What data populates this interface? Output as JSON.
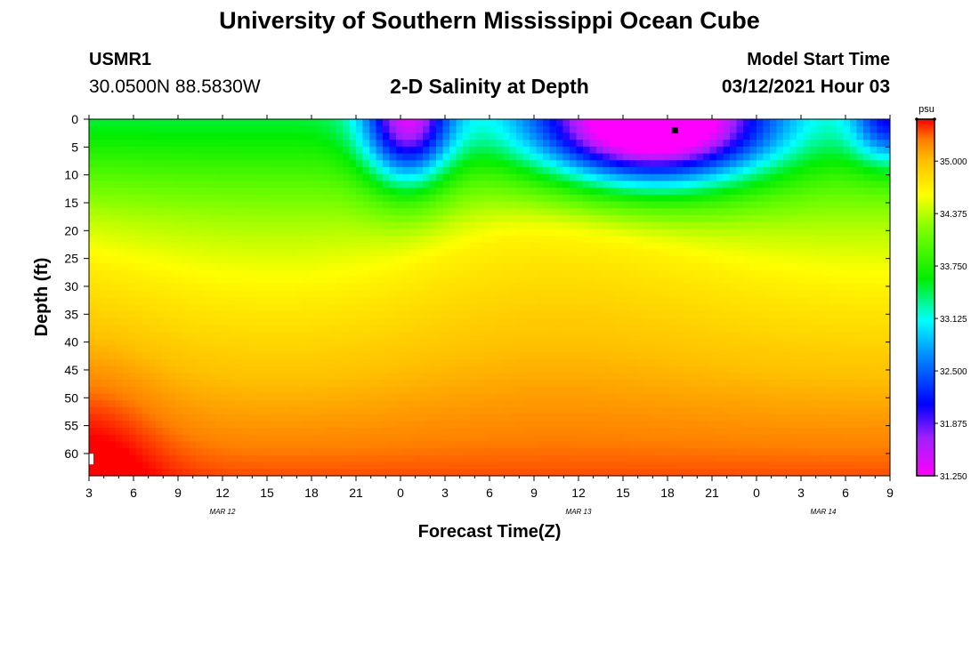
{
  "header": {
    "title": "University of Southern Mississippi Ocean Cube",
    "station": "USMR1",
    "coordinates": "30.0500N 88.5830W",
    "product_title": "2-D Salinity at Depth",
    "model_start_label": "Model Start Time",
    "model_start_value": "03/12/2021 Hour 03"
  },
  "footer": {
    "title": "University of Southern Mississippi Ocean Cube"
  },
  "chart_data": {
    "type": "heatmap",
    "title": "2-D Salinity at Depth",
    "xlabel": "Forecast Time(Z)",
    "ylabel": "Depth (ft)",
    "x_ticks": [
      "3",
      "6",
      "9",
      "12",
      "15",
      "18",
      "21",
      "0",
      "3",
      "6",
      "9",
      "12",
      "15",
      "18",
      "21",
      "0",
      "3",
      "6",
      "9"
    ],
    "x_range_hours": [
      0,
      54
    ],
    "date_labels": [
      {
        "label": "MAR 12",
        "hour": 9
      },
      {
        "label": "MAR 13",
        "hour": 33
      },
      {
        "label": "MAR 14",
        "hour": 49.5
      }
    ],
    "y_ticks": [
      "0",
      "5",
      "10",
      "15",
      "20",
      "25",
      "30",
      "35",
      "40",
      "45",
      "50",
      "55",
      "60"
    ],
    "y_range": [
      0,
      64
    ],
    "y_inverted": true,
    "colorbar": {
      "unit": "psu",
      "ticks": [
        "35.000",
        "34.375",
        "33.750",
        "33.125",
        "32.500",
        "31.875",
        "31.250"
      ],
      "range": [
        31.25,
        35.5
      ],
      "colors": [
        {
          "v": 31.25,
          "c": "#ff00ff"
        },
        {
          "v": 31.7,
          "c": "#a020ff"
        },
        {
          "v": 32.1,
          "c": "#0000ff"
        },
        {
          "v": 32.7,
          "c": "#0090ff"
        },
        {
          "v": 33.1,
          "c": "#00ffff"
        },
        {
          "v": 33.6,
          "c": "#00ee00"
        },
        {
          "v": 34.2,
          "c": "#80ff00"
        },
        {
          "v": 34.6,
          "c": "#ffff00"
        },
        {
          "v": 35.0,
          "c": "#ffc000"
        },
        {
          "v": 35.25,
          "c": "#ff8000"
        },
        {
          "v": 35.5,
          "c": "#ff0000"
        }
      ]
    },
    "markers": [
      {
        "hour": 39.5,
        "depth": 2,
        "color": "#000000"
      },
      {
        "hour": 0,
        "depth": 61,
        "color": "#ffffff"
      }
    ],
    "grid": false,
    "legend": "right"
  }
}
